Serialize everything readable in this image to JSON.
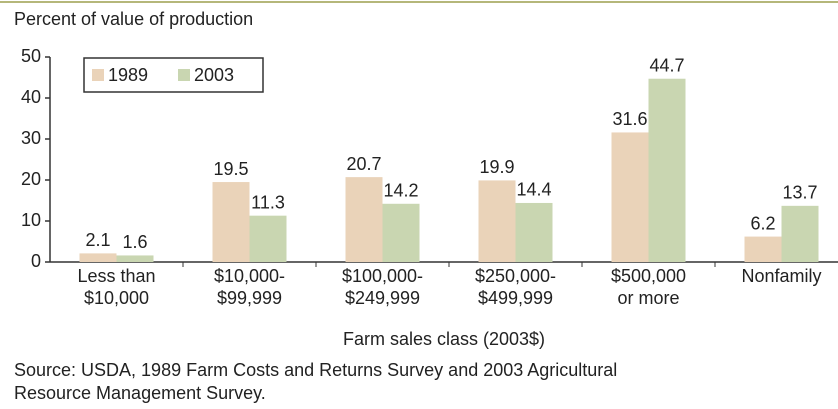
{
  "chart_data": {
    "type": "bar",
    "y_axis_title": "Percent of value of production",
    "x_axis_title": "Farm sales class (2003$)",
    "source": "Source:  USDA, 1989 Farm Costs and Returns Survey and 2003 Agricultural\nResource Management Survey.",
    "categories": [
      "Less than\n$10,000",
      "$10,000-\n$99,999",
      "$100,000-\n$249,999",
      "$250,000-\n$499,999",
      "$500,000\nor more",
      "Nonfamily"
    ],
    "series": [
      {
        "name": "1989",
        "color": "#ead3b9",
        "values": [
          2.1,
          19.5,
          20.7,
          19.9,
          31.6,
          6.2
        ]
      },
      {
        "name": "2003",
        "color": "#c9d6b1",
        "values": [
          1.6,
          11.3,
          14.2,
          14.4,
          44.7,
          13.7
        ]
      }
    ],
    "ylim": [
      0,
      50
    ],
    "yticks": [
      0,
      10,
      20,
      30,
      40,
      50
    ]
  }
}
